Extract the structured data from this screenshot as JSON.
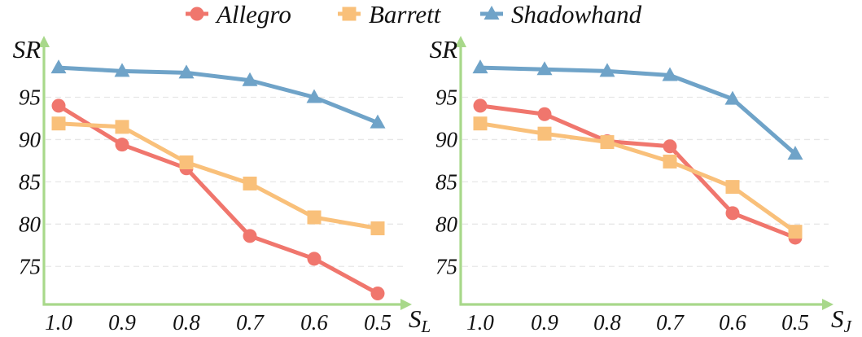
{
  "legend": [
    {
      "name": "Allegro",
      "color": "#f0766d",
      "marker": "circle"
    },
    {
      "name": "Barrett",
      "color": "#f9c07a",
      "marker": "square"
    },
    {
      "name": "Shadowhand",
      "color": "#6fa3c8",
      "marker": "triangle"
    }
  ],
  "chart_data": [
    {
      "type": "line",
      "ylabel": "SR",
      "xlabel_main": "S",
      "xlabel_sub": "L",
      "categories": [
        "1.0",
        "0.9",
        "0.8",
        "0.7",
        "0.6",
        "0.5"
      ],
      "yticks": [
        75,
        80,
        85,
        90,
        95
      ],
      "ylim": [
        70.5,
        101.5
      ],
      "grid": true,
      "series": [
        {
          "name": "Allegro",
          "values": [
            94.0,
            89.4,
            86.6,
            78.6,
            75.9,
            71.8
          ]
        },
        {
          "name": "Barrett",
          "values": [
            91.9,
            91.5,
            87.3,
            84.8,
            80.8,
            79.5
          ]
        },
        {
          "name": "Shadowhand",
          "values": [
            98.5,
            98.1,
            97.9,
            97.0,
            95.0,
            92.0
          ]
        }
      ]
    },
    {
      "type": "line",
      "ylabel": "SR",
      "xlabel_main": "S",
      "xlabel_sub": "J",
      "categories": [
        "1.0",
        "0.9",
        "0.8",
        "0.7",
        "0.6",
        "0.5"
      ],
      "yticks": [
        75,
        80,
        85,
        90,
        95
      ],
      "ylim": [
        70.5,
        101.5
      ],
      "grid": true,
      "series": [
        {
          "name": "Allegro",
          "values": [
            94.0,
            93.0,
            89.8,
            89.2,
            81.3,
            78.4
          ]
        },
        {
          "name": "Barrett",
          "values": [
            91.9,
            90.7,
            89.7,
            87.4,
            84.4,
            79.1
          ]
        },
        {
          "name": "Shadowhand",
          "values": [
            98.5,
            98.3,
            98.1,
            97.6,
            94.8,
            88.3
          ]
        }
      ]
    }
  ]
}
